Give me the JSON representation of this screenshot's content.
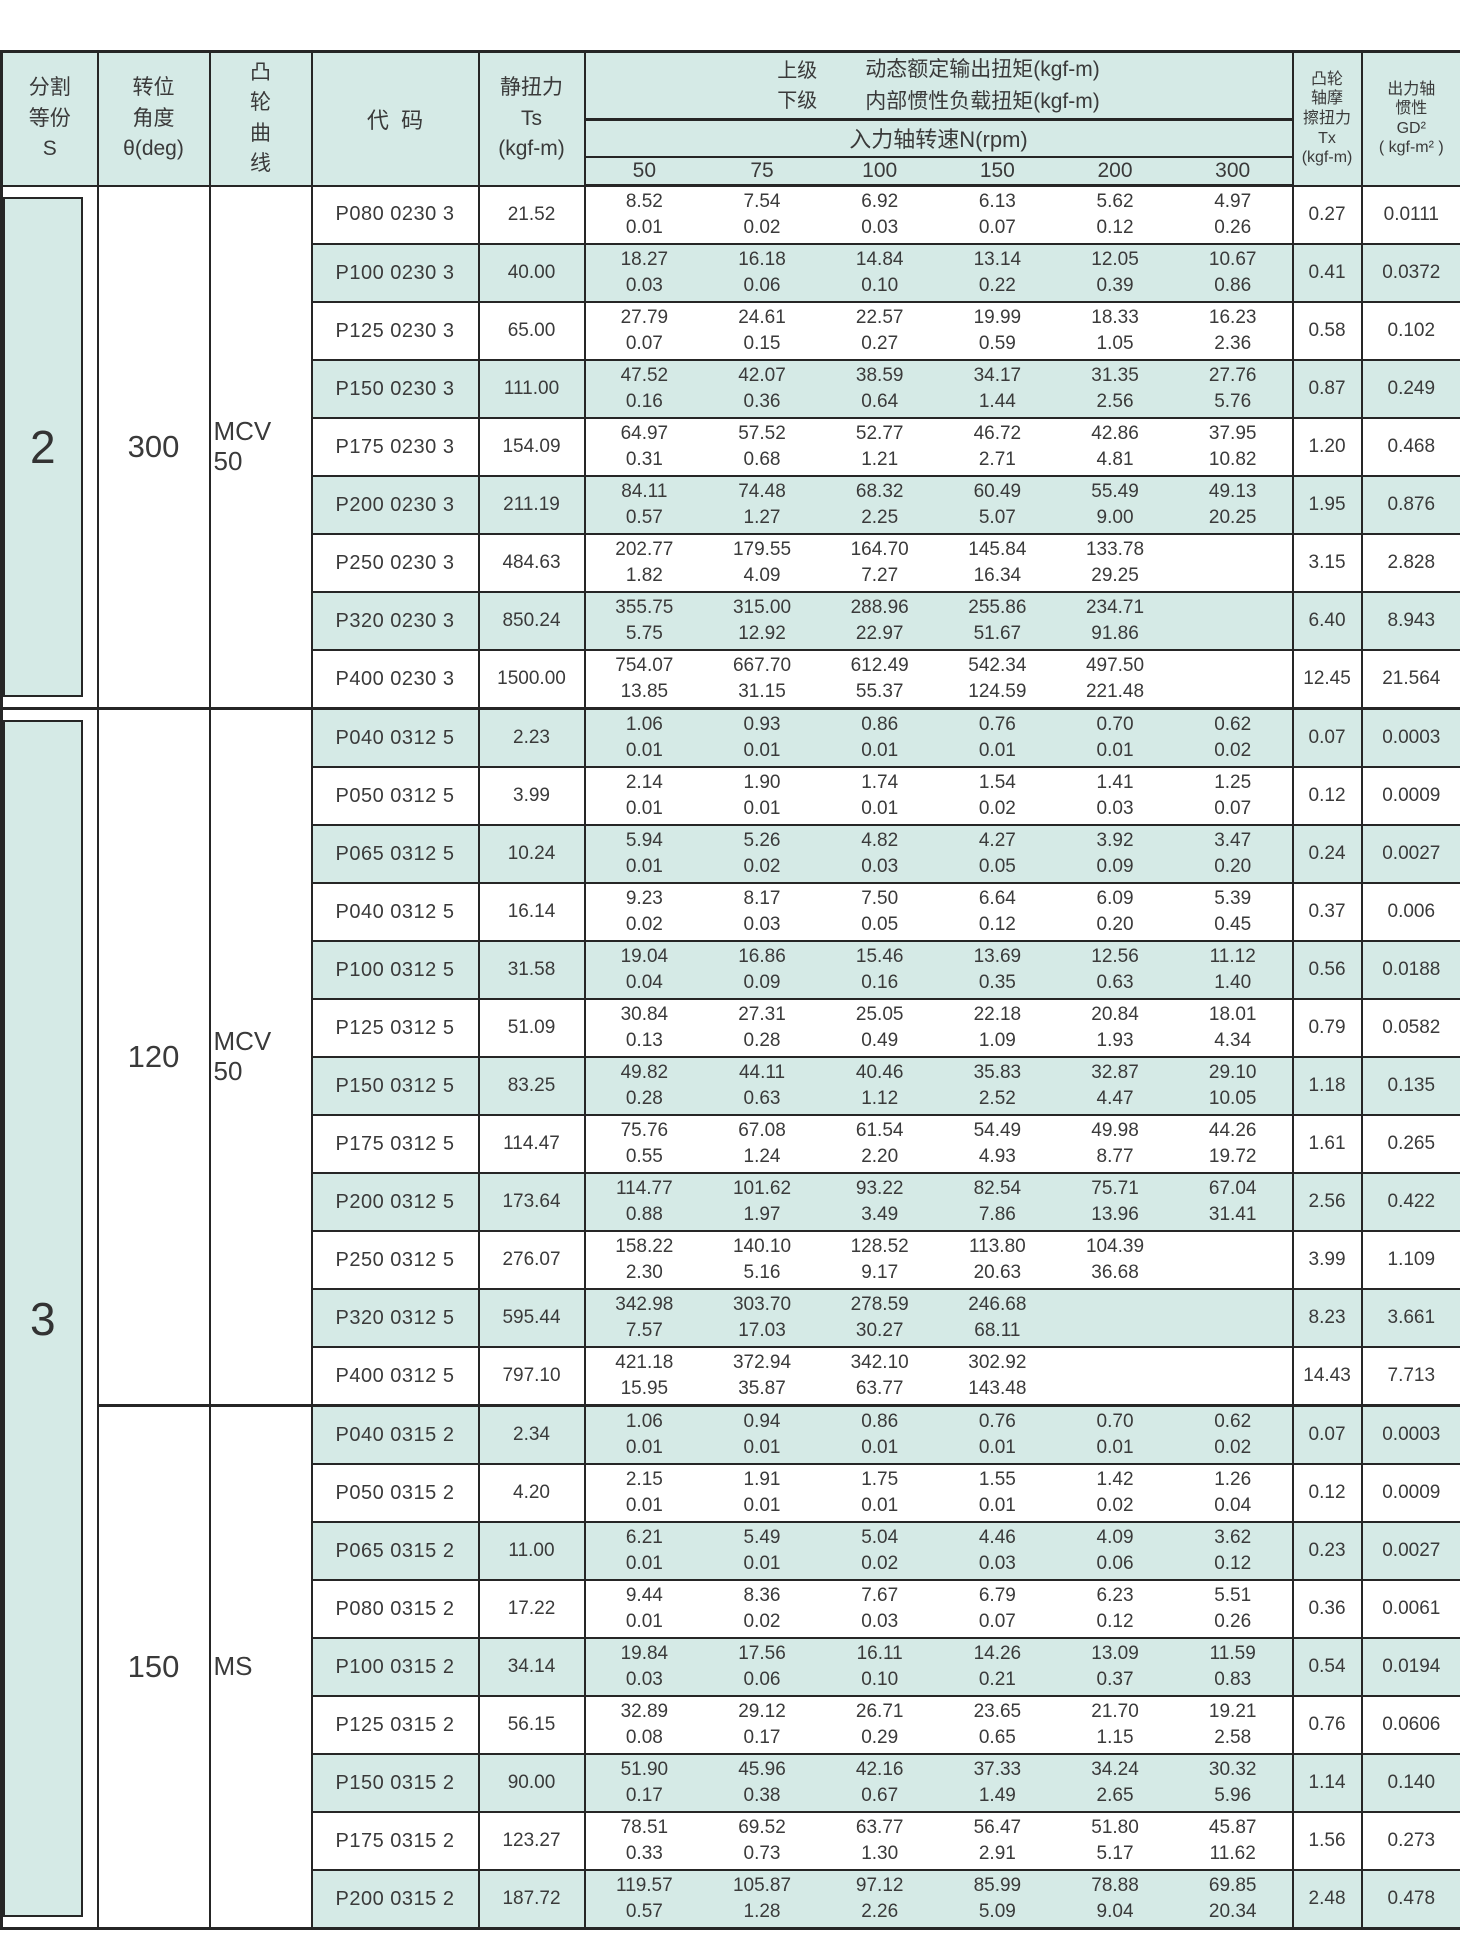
{
  "colors": {
    "accent_teal": "#d5eae6",
    "border": "#262626",
    "text": "#3a3a3a"
  },
  "header": {
    "division": [
      "分割",
      "等份",
      "S"
    ],
    "angle": [
      "转位",
      "角度",
      "θ(deg)"
    ],
    "cam_curve": [
      "凸",
      "轮",
      "曲",
      "线"
    ],
    "code": "代  码",
    "static_torque": [
      "静扭力",
      "Ts",
      "(kgf-m)"
    ],
    "upper_label": "上级",
    "lower_label": "下级",
    "upper_desc": "动态额定输出扭矩(kgf-m)",
    "lower_desc": "内部惯性负载扭矩(kgf-m)",
    "rpm_title": "入力轴转速N(rpm)",
    "rpm_values": [
      "50",
      "75",
      "100",
      "150",
      "200",
      "300"
    ],
    "friction": [
      "凸轮",
      "轴摩",
      "擦扭力",
      "Tx",
      "(kgf-m)"
    ],
    "inertia": [
      "出力轴",
      "惯性",
      "GD²",
      "( kgf-m² )"
    ]
  },
  "table": {
    "s_boxes": [
      {
        "label": "2",
        "rows": 9
      },
      {
        "label": "3",
        "rows": 21
      }
    ],
    "groups": [
      {
        "angle": "300",
        "curve": "MCV\n50",
        "rows": 9
      },
      {
        "angle": "120",
        "curve": "MCV\n50",
        "rows": 12
      },
      {
        "angle": "150",
        "curve": "MS",
        "rows": 9
      }
    ],
    "rows": [
      {
        "code": "P080 0230 3",
        "ts": "21.52",
        "u": [
          "8.52",
          "7.54",
          "6.92",
          "6.13",
          "5.62",
          "4.97"
        ],
        "l": [
          "0.01",
          "0.02",
          "0.03",
          "0.07",
          "0.12",
          "0.26"
        ],
        "tx": "0.27",
        "gd2": "0.0111",
        "shaded": false
      },
      {
        "code": "P100 0230 3",
        "ts": "40.00",
        "u": [
          "18.27",
          "16.18",
          "14.84",
          "13.14",
          "12.05",
          "10.67"
        ],
        "l": [
          "0.03",
          "0.06",
          "0.10",
          "0.22",
          "0.39",
          "0.86"
        ],
        "tx": "0.41",
        "gd2": "0.0372",
        "shaded": true
      },
      {
        "code": "P125 0230 3",
        "ts": "65.00",
        "u": [
          "27.79",
          "24.61",
          "22.57",
          "19.99",
          "18.33",
          "16.23"
        ],
        "l": [
          "0.07",
          "0.15",
          "0.27",
          "0.59",
          "1.05",
          "2.36"
        ],
        "tx": "0.58",
        "gd2": "0.102",
        "shaded": false
      },
      {
        "code": "P150 0230 3",
        "ts": "111.00",
        "u": [
          "47.52",
          "42.07",
          "38.59",
          "34.17",
          "31.35",
          "27.76"
        ],
        "l": [
          "0.16",
          "0.36",
          "0.64",
          "1.44",
          "2.56",
          "5.76"
        ],
        "tx": "0.87",
        "gd2": "0.249",
        "shaded": true
      },
      {
        "code": "P175 0230 3",
        "ts": "154.09",
        "u": [
          "64.97",
          "57.52",
          "52.77",
          "46.72",
          "42.86",
          "37.95"
        ],
        "l": [
          "0.31",
          "0.68",
          "1.21",
          "2.71",
          "4.81",
          "10.82"
        ],
        "tx": "1.20",
        "gd2": "0.468",
        "shaded": false
      },
      {
        "code": "P200 0230 3",
        "ts": "211.19",
        "u": [
          "84.11",
          "74.48",
          "68.32",
          "60.49",
          "55.49",
          "49.13"
        ],
        "l": [
          "0.57",
          "1.27",
          "2.25",
          "5.07",
          "9.00",
          "20.25"
        ],
        "tx": "1.95",
        "gd2": "0.876",
        "shaded": true
      },
      {
        "code": "P250 0230 3",
        "ts": "484.63",
        "u": [
          "202.77",
          "179.55",
          "164.70",
          "145.84",
          "133.78",
          ""
        ],
        "l": [
          "1.82",
          "4.09",
          "7.27",
          "16.34",
          "29.25",
          ""
        ],
        "tx": "3.15",
        "gd2": "2.828",
        "shaded": false
      },
      {
        "code": "P320 0230 3",
        "ts": "850.24",
        "u": [
          "355.75",
          "315.00",
          "288.96",
          "255.86",
          "234.71",
          ""
        ],
        "l": [
          "5.75",
          "12.92",
          "22.97",
          "51.67",
          "91.86",
          ""
        ],
        "tx": "6.40",
        "gd2": "8.943",
        "shaded": true
      },
      {
        "code": "P400 0230 3",
        "ts": "1500.00",
        "u": [
          "754.07",
          "667.70",
          "612.49",
          "542.34",
          "497.50",
          ""
        ],
        "l": [
          "13.85",
          "31.15",
          "55.37",
          "124.59",
          "221.48",
          ""
        ],
        "tx": "12.45",
        "gd2": "21.564",
        "shaded": false
      },
      {
        "code": "P040 0312 5",
        "ts": "2.23",
        "u": [
          "1.06",
          "0.93",
          "0.86",
          "0.76",
          "0.70",
          "0.62"
        ],
        "l": [
          "0.01",
          "0.01",
          "0.01",
          "0.01",
          "0.01",
          "0.02"
        ],
        "tx": "0.07",
        "gd2": "0.0003",
        "shaded": true
      },
      {
        "code": "P050 0312 5",
        "ts": "3.99",
        "u": [
          "2.14",
          "1.90",
          "1.74",
          "1.54",
          "1.41",
          "1.25"
        ],
        "l": [
          "0.01",
          "0.01",
          "0.01",
          "0.02",
          "0.03",
          "0.07"
        ],
        "tx": "0.12",
        "gd2": "0.0009",
        "shaded": false
      },
      {
        "code": "P065 0312 5",
        "ts": "10.24",
        "u": [
          "5.94",
          "5.26",
          "4.82",
          "4.27",
          "3.92",
          "3.47"
        ],
        "l": [
          "0.01",
          "0.02",
          "0.03",
          "0.05",
          "0.09",
          "0.20"
        ],
        "tx": "0.24",
        "gd2": "0.0027",
        "shaded": true
      },
      {
        "code": "P040 0312 5",
        "ts": "16.14",
        "u": [
          "9.23",
          "8.17",
          "7.50",
          "6.64",
          "6.09",
          "5.39"
        ],
        "l": [
          "0.02",
          "0.03",
          "0.05",
          "0.12",
          "0.20",
          "0.45"
        ],
        "tx": "0.37",
        "gd2": "0.006",
        "shaded": false
      },
      {
        "code": "P100 0312 5",
        "ts": "31.58",
        "u": [
          "19.04",
          "16.86",
          "15.46",
          "13.69",
          "12.56",
          "11.12"
        ],
        "l": [
          "0.04",
          "0.09",
          "0.16",
          "0.35",
          "0.63",
          "1.40"
        ],
        "tx": "0.56",
        "gd2": "0.0188",
        "shaded": true
      },
      {
        "code": "P125 0312 5",
        "ts": "51.09",
        "u": [
          "30.84",
          "27.31",
          "25.05",
          "22.18",
          "20.84",
          "18.01"
        ],
        "l": [
          "0.13",
          "0.28",
          "0.49",
          "1.09",
          "1.93",
          "4.34"
        ],
        "tx": "0.79",
        "gd2": "0.0582",
        "shaded": false
      },
      {
        "code": "P150 0312 5",
        "ts": "83.25",
        "u": [
          "49.82",
          "44.11",
          "40.46",
          "35.83",
          "32.87",
          "29.10"
        ],
        "l": [
          "0.28",
          "0.63",
          "1.12",
          "2.52",
          "4.47",
          "10.05"
        ],
        "tx": "1.18",
        "gd2": "0.135",
        "shaded": true
      },
      {
        "code": "P175 0312 5",
        "ts": "114.47",
        "u": [
          "75.76",
          "67.08",
          "61.54",
          "54.49",
          "49.98",
          "44.26"
        ],
        "l": [
          "0.55",
          "1.24",
          "2.20",
          "4.93",
          "8.77",
          "19.72"
        ],
        "tx": "1.61",
        "gd2": "0.265",
        "shaded": false
      },
      {
        "code": "P200 0312 5",
        "ts": "173.64",
        "u": [
          "114.77",
          "101.62",
          "93.22",
          "82.54",
          "75.71",
          "67.04"
        ],
        "l": [
          "0.88",
          "1.97",
          "3.49",
          "7.86",
          "13.96",
          "31.41"
        ],
        "tx": "2.56",
        "gd2": "0.422",
        "shaded": true
      },
      {
        "code": "P250 0312 5",
        "ts": "276.07",
        "u": [
          "158.22",
          "140.10",
          "128.52",
          "113.80",
          "104.39",
          ""
        ],
        "l": [
          "2.30",
          "5.16",
          "9.17",
          "20.63",
          "36.68",
          ""
        ],
        "tx": "3.99",
        "gd2": "1.109",
        "shaded": false
      },
      {
        "code": "P320 0312 5",
        "ts": "595.44",
        "u": [
          "342.98",
          "303.70",
          "278.59",
          "246.68",
          "",
          ""
        ],
        "l": [
          "7.57",
          "17.03",
          "30.27",
          "68.11",
          "",
          ""
        ],
        "tx": "8.23",
        "gd2": "3.661",
        "shaded": true
      },
      {
        "code": "P400 0312 5",
        "ts": "797.10",
        "u": [
          "421.18",
          "372.94",
          "342.10",
          "302.92",
          "",
          ""
        ],
        "l": [
          "15.95",
          "35.87",
          "63.77",
          "143.48",
          "",
          ""
        ],
        "tx": "14.43",
        "gd2": "7.713",
        "shaded": false
      },
      {
        "code": "P040 0315 2",
        "ts": "2.34",
        "u": [
          "1.06",
          "0.94",
          "0.86",
          "0.76",
          "0.70",
          "0.62"
        ],
        "l": [
          "0.01",
          "0.01",
          "0.01",
          "0.01",
          "0.01",
          "0.02"
        ],
        "tx": "0.07",
        "gd2": "0.0003",
        "shaded": true
      },
      {
        "code": "P050 0315 2",
        "ts": "4.20",
        "u": [
          "2.15",
          "1.91",
          "1.75",
          "1.55",
          "1.42",
          "1.26"
        ],
        "l": [
          "0.01",
          "0.01",
          "0.01",
          "0.01",
          "0.02",
          "0.04"
        ],
        "tx": "0.12",
        "gd2": "0.0009",
        "shaded": false
      },
      {
        "code": "P065 0315 2",
        "ts": "11.00",
        "u": [
          "6.21",
          "5.49",
          "5.04",
          "4.46",
          "4.09",
          "3.62"
        ],
        "l": [
          "0.01",
          "0.01",
          "0.02",
          "0.03",
          "0.06",
          "0.12"
        ],
        "tx": "0.23",
        "gd2": "0.0027",
        "shaded": true
      },
      {
        "code": "P080 0315 2",
        "ts": "17.22",
        "u": [
          "9.44",
          "8.36",
          "7.67",
          "6.79",
          "6.23",
          "5.51"
        ],
        "l": [
          "0.01",
          "0.02",
          "0.03",
          "0.07",
          "0.12",
          "0.26"
        ],
        "tx": "0.36",
        "gd2": "0.0061",
        "shaded": false
      },
      {
        "code": "P100 0315 2",
        "ts": "34.14",
        "u": [
          "19.84",
          "17.56",
          "16.11",
          "14.26",
          "13.09",
          "11.59"
        ],
        "l": [
          "0.03",
          "0.06",
          "0.10",
          "0.21",
          "0.37",
          "0.83"
        ],
        "tx": "0.54",
        "gd2": "0.0194",
        "shaded": true
      },
      {
        "code": "P125 0315 2",
        "ts": "56.15",
        "u": [
          "32.89",
          "29.12",
          "26.71",
          "23.65",
          "21.70",
          "19.21"
        ],
        "l": [
          "0.08",
          "0.17",
          "0.29",
          "0.65",
          "1.15",
          "2.58"
        ],
        "tx": "0.76",
        "gd2": "0.0606",
        "shaded": false
      },
      {
        "code": "P150 0315 2",
        "ts": "90.00",
        "u": [
          "51.90",
          "45.96",
          "42.16",
          "37.33",
          "34.24",
          "30.32"
        ],
        "l": [
          "0.17",
          "0.38",
          "0.67",
          "1.49",
          "2.65",
          "5.96"
        ],
        "tx": "1.14",
        "gd2": "0.140",
        "shaded": true
      },
      {
        "code": "P175 0315 2",
        "ts": "123.27",
        "u": [
          "78.51",
          "69.52",
          "63.77",
          "56.47",
          "51.80",
          "45.87"
        ],
        "l": [
          "0.33",
          "0.73",
          "1.30",
          "2.91",
          "5.17",
          "11.62"
        ],
        "tx": "1.56",
        "gd2": "0.273",
        "shaded": false
      },
      {
        "code": "P200 0315 2",
        "ts": "187.72",
        "u": [
          "119.57",
          "105.87",
          "97.12",
          "85.99",
          "78.88",
          "69.85"
        ],
        "l": [
          "0.57",
          "1.28",
          "2.26",
          "5.09",
          "9.04",
          "20.34"
        ],
        "tx": "2.48",
        "gd2": "0.478",
        "shaded": true
      }
    ]
  }
}
